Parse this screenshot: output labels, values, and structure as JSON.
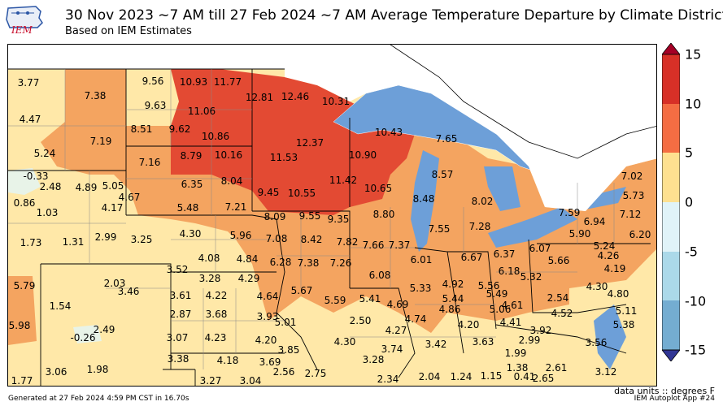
{
  "header": {
    "title": "30 Nov 2023 ~7 AM till 27 Feb 2024 ~7 AM Average Temperature Departure by Climate District",
    "subtitle": "Based on IEM Estimates",
    "logo_text": "IEM"
  },
  "colors": {
    "c15": "#a50026",
    "c10": "#d73027",
    "c5": "#f46d43",
    "c0": "#fdae61",
    "cm0": "#fee090",
    "cneg0": "#e0f3f8",
    "cm5": "#abd9e9",
    "cm10": "#74add1",
    "cm15": "#313695",
    "water": "#6d9fd8",
    "band_gt10": "#e34a33",
    "band_5_10": "#f4a460",
    "band_0_5": "#ffe8a8",
    "band_neg": "#e8f3e8"
  },
  "colorbar": {
    "ticks": [
      "15",
      "10",
      "5",
      "0",
      "-5",
      "-10",
      "-15"
    ]
  },
  "districts": [
    {
      "label": "3.77"
    },
    {
      "label": "7.38"
    },
    {
      "label": "9.56"
    },
    {
      "label": "10.93"
    },
    {
      "label": "11.77"
    },
    {
      "label": "4.47"
    },
    {
      "label": "9.63"
    },
    {
      "label": "11.06"
    },
    {
      "label": "12.81"
    },
    {
      "label": "12.46"
    },
    {
      "label": "10.31"
    },
    {
      "label": "8.51"
    },
    {
      "label": "9.62"
    },
    {
      "label": "10.86"
    },
    {
      "label": "10.43"
    },
    {
      "label": "5.24"
    },
    {
      "label": "7.19"
    },
    {
      "label": "12.37"
    },
    {
      "label": "7.65"
    },
    {
      "label": "7.16"
    },
    {
      "label": "8.79"
    },
    {
      "label": "10.16"
    },
    {
      "label": "11.53"
    },
    {
      "label": "10.90"
    },
    {
      "label": "-0.33"
    },
    {
      "label": "2.48"
    },
    {
      "label": "4.89"
    },
    {
      "label": "5.05"
    },
    {
      "label": "6.35"
    },
    {
      "label": "8.04"
    },
    {
      "label": "8.57"
    },
    {
      "label": "7.02"
    },
    {
      "label": "11.42"
    },
    {
      "label": "4.67"
    },
    {
      "label": "10.65"
    },
    {
      "label": "9.45"
    },
    {
      "label": "10.55"
    },
    {
      "label": "0.86"
    },
    {
      "label": "4.17"
    },
    {
      "label": "5.48"
    },
    {
      "label": "7.21"
    },
    {
      "label": "8.48"
    },
    {
      "label": "8.02"
    },
    {
      "label": "5.73"
    },
    {
      "label": "1.03"
    },
    {
      "label": "8.09"
    },
    {
      "label": "9.55"
    },
    {
      "label": "9.35"
    },
    {
      "label": "8.80"
    },
    {
      "label": "7.59"
    },
    {
      "label": "7.12"
    },
    {
      "label": "6.94"
    },
    {
      "label": "7.28"
    },
    {
      "label": "3.25"
    },
    {
      "label": "4.30"
    },
    {
      "label": "5.96"
    },
    {
      "label": "7.55"
    },
    {
      "label": "5.90"
    },
    {
      "label": "6.20"
    },
    {
      "label": "1.73"
    },
    {
      "label": "1.31"
    },
    {
      "label": "2.99"
    },
    {
      "label": "7.08"
    },
    {
      "label": "8.42"
    },
    {
      "label": "7.82"
    },
    {
      "label": "7.66"
    },
    {
      "label": "7.37"
    },
    {
      "label": "6.07"
    },
    {
      "label": "5.24"
    },
    {
      "label": "4.08"
    },
    {
      "label": "4.84"
    },
    {
      "label": "6.28"
    },
    {
      "label": "7.38"
    },
    {
      "label": "7.26"
    },
    {
      "label": "6.01"
    },
    {
      "label": "6.67"
    },
    {
      "label": "6.37"
    },
    {
      "label": "5.66"
    },
    {
      "label": "4.26"
    },
    {
      "label": "3.52"
    },
    {
      "label": "4.19"
    },
    {
      "label": "6.18"
    },
    {
      "label": "3.28"
    },
    {
      "label": "4.29"
    },
    {
      "label": "6.08"
    },
    {
      "label": "5.32"
    },
    {
      "label": "5.79"
    },
    {
      "label": "2.03"
    },
    {
      "label": "5.67"
    },
    {
      "label": "4.92"
    },
    {
      "label": "5.56"
    },
    {
      "label": "4.30"
    },
    {
      "label": "3.46"
    },
    {
      "label": "3.61"
    },
    {
      "label": "4.22"
    },
    {
      "label": "4.64"
    },
    {
      "label": "5.33"
    },
    {
      "label": "5.49"
    },
    {
      "label": "2.54"
    },
    {
      "label": "4.80"
    },
    {
      "label": "5.59"
    },
    {
      "label": "5.41"
    },
    {
      "label": "5.44"
    },
    {
      "label": "1.54"
    },
    {
      "label": "4.69"
    },
    {
      "label": "4.61"
    },
    {
      "label": "5.11"
    },
    {
      "label": "2.87"
    },
    {
      "label": "3.68"
    },
    {
      "label": "3.93"
    },
    {
      "label": "4.86"
    },
    {
      "label": "5.06"
    },
    {
      "label": "4.52"
    },
    {
      "label": "4.74"
    },
    {
      "label": "5.98"
    },
    {
      "label": "5.01"
    },
    {
      "label": "2.50"
    },
    {
      "label": "4.41"
    },
    {
      "label": "5.38"
    },
    {
      "label": "2.49"
    },
    {
      "label": "4.20"
    },
    {
      "label": "3.92"
    },
    {
      "label": "4.27"
    },
    {
      "label": "-0.26"
    },
    {
      "label": "3.07"
    },
    {
      "label": "4.23"
    },
    {
      "label": "4.20"
    },
    {
      "label": "4.30"
    },
    {
      "label": "3.63"
    },
    {
      "label": "2.99"
    },
    {
      "label": "3.56"
    },
    {
      "label": "3.74"
    },
    {
      "label": "3.42"
    },
    {
      "label": "3.85"
    },
    {
      "label": "1.99"
    },
    {
      "label": "3.38"
    },
    {
      "label": "3.28"
    },
    {
      "label": "4.18"
    },
    {
      "label": "3.69"
    },
    {
      "label": "3.06"
    },
    {
      "label": "1.98"
    },
    {
      "label": "2.56"
    },
    {
      "label": "2.75"
    },
    {
      "label": "1.38"
    },
    {
      "label": "2.61"
    },
    {
      "label": "3.12"
    },
    {
      "label": "1.77"
    },
    {
      "label": "3.27"
    },
    {
      "label": "3.04"
    },
    {
      "label": "2.34"
    },
    {
      "label": "2.04"
    },
    {
      "label": "1.24"
    },
    {
      "label": "1.15"
    },
    {
      "label": "0.41"
    },
    {
      "label": "2.65"
    }
  ],
  "footer": {
    "units": "data units :: degrees F",
    "generated": "Generated at 27 Feb 2024 4:59 PM CST in 16.70s",
    "app": "IEM Autoplot App #24"
  }
}
